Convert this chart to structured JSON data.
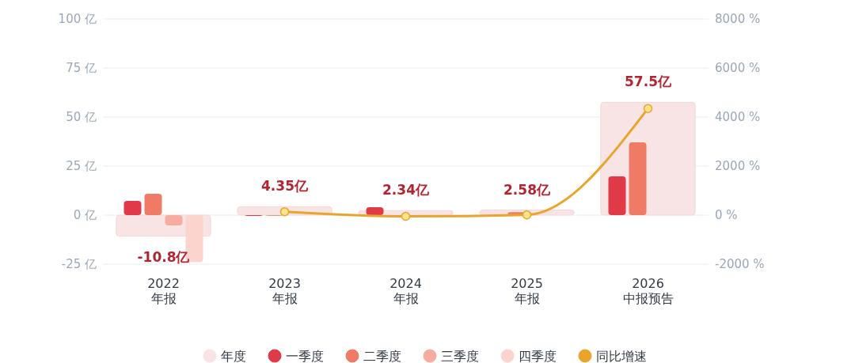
{
  "chart_data": {
    "type": "bar",
    "categories": [
      "2022\n年报",
      "2023\n年报",
      "2024\n年报",
      "2025\n年报",
      "2026\n中报预告"
    ],
    "series": [
      {
        "name": "年度",
        "color": "#f8e3e5",
        "values": [
          -10.8,
          4.35,
          2.34,
          2.58,
          57.5
        ],
        "value_labels": [
          "-10.8亿",
          "4.35亿",
          "2.34亿",
          "2.58亿",
          "57.5亿"
        ]
      },
      {
        "name": "一季度",
        "color": "#e03a48",
        "values": [
          7.3,
          -0.4,
          4,
          null,
          19.8
        ]
      },
      {
        "name": "二季度",
        "color": "#ef7a66",
        "values": [
          10.9,
          -0.3,
          -0.5,
          1.5,
          37.1
        ]
      },
      {
        "name": "三季度",
        "color": "#f6ad9f",
        "values": [
          -5.2,
          null,
          null,
          null,
          null
        ]
      },
      {
        "name": "四季度",
        "color": "#fbd4ce",
        "values": [
          -24,
          null,
          null,
          null,
          null
        ]
      },
      {
        "name": "同比增速",
        "type": "line",
        "axis": "y2",
        "color": "#e9a52b",
        "values": [
          null,
          140,
          -50,
          10,
          4350
        ]
      }
    ],
    "ylim": [
      -25,
      100
    ],
    "yticks": [
      {
        "value": -25,
        "label": "-25 亿"
      },
      {
        "value": 0,
        "label": "0 亿"
      },
      {
        "value": 25,
        "label": "25 亿"
      },
      {
        "value": 50,
        "label": "50 亿"
      },
      {
        "value": 75,
        "label": "75 亿"
      },
      {
        "value": 100,
        "label": "100 亿"
      }
    ],
    "y2lim": [
      -2000,
      8000
    ],
    "y2ticks": [
      {
        "value": -2000,
        "label": "-2000 %"
      },
      {
        "value": 0,
        "label": "0 %"
      },
      {
        "value": 2000,
        "label": "2000 %"
      },
      {
        "value": 4000,
        "label": "4000 %"
      },
      {
        "value": 6000,
        "label": "6000 %"
      },
      {
        "value": 8000,
        "label": "8000 %"
      }
    ],
    "grid": "y",
    "legend": "bottom",
    "marker": "circle"
  }
}
